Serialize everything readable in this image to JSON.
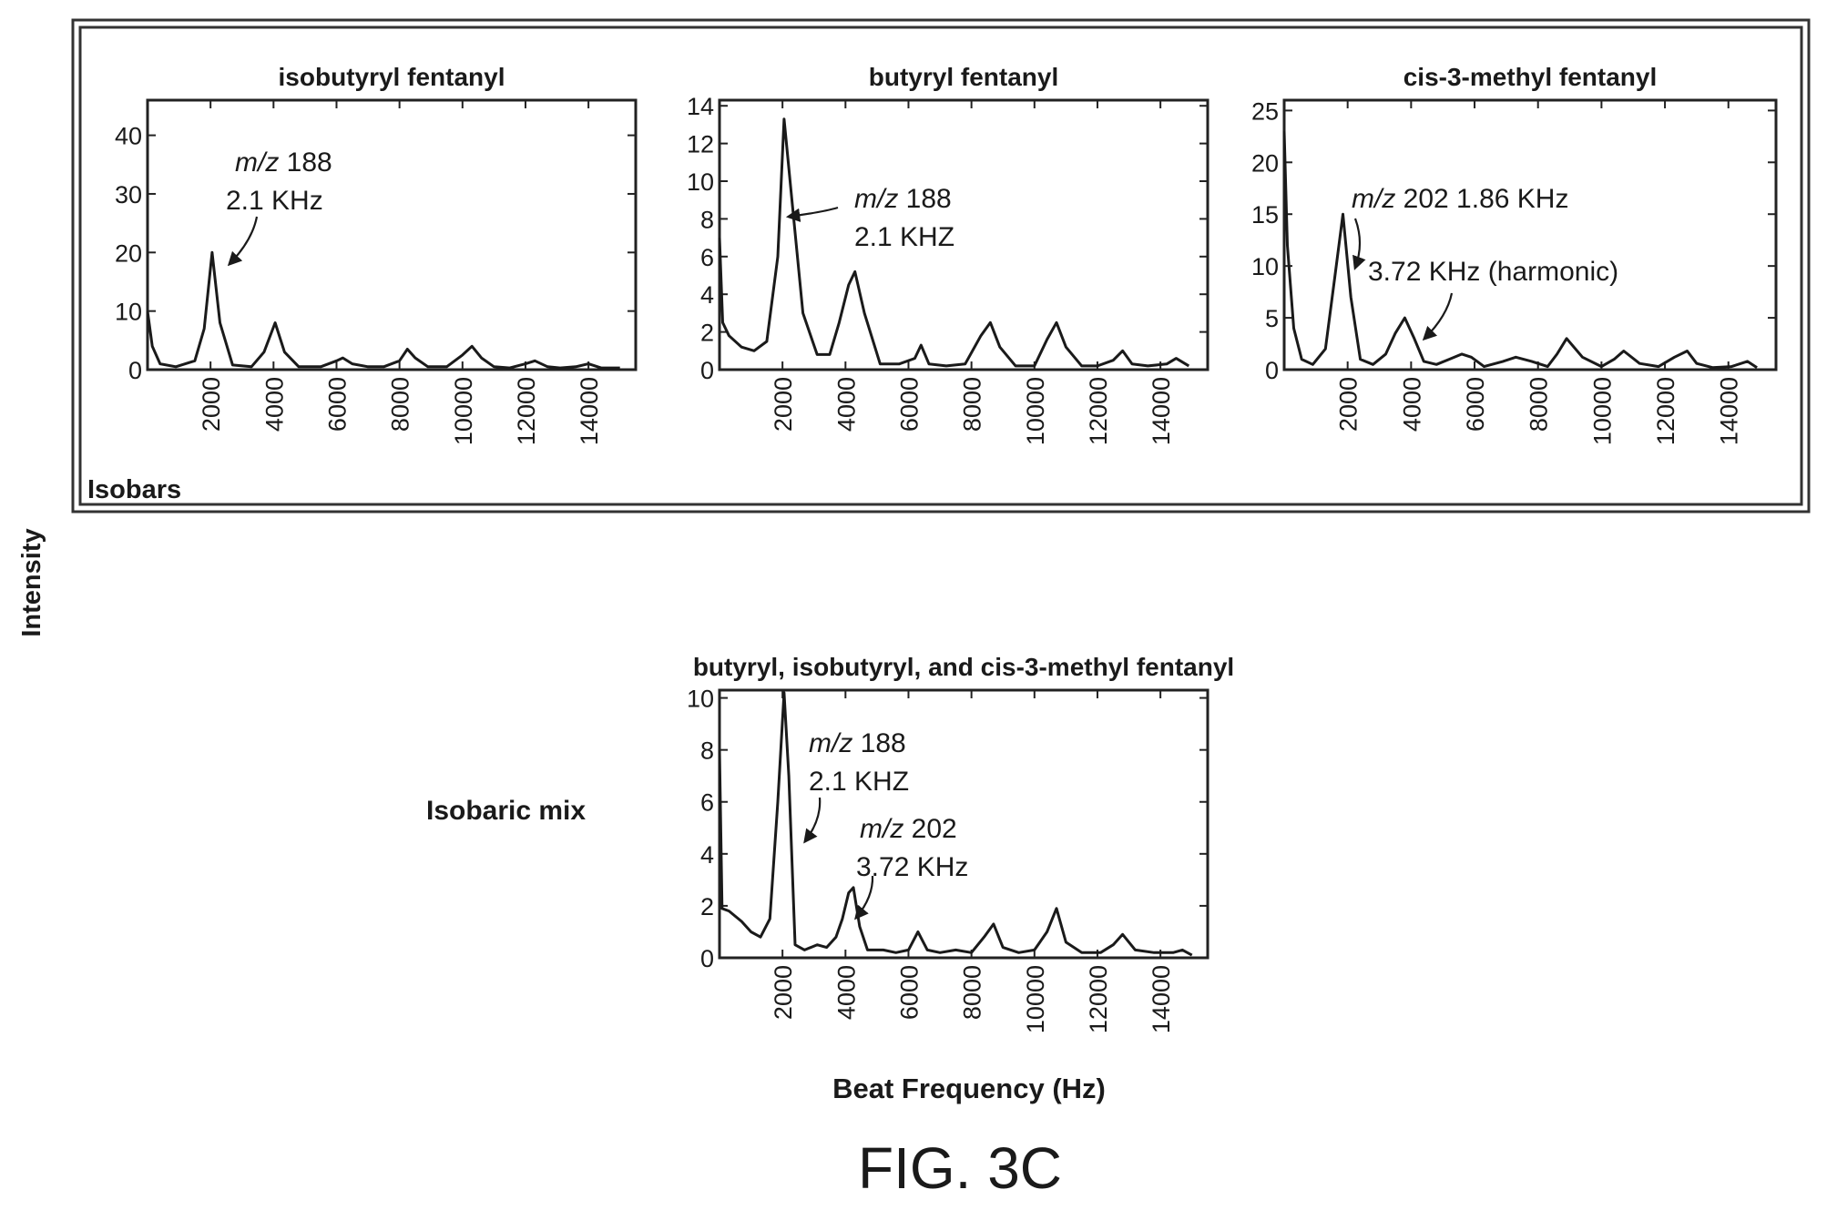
{
  "figure": {
    "y_axis_label": "Intensity",
    "x_axis_label": "Beat Frequency (Hz)",
    "caption": "FIG. 3C",
    "group_label": "Isobars",
    "mix_label": "Isobaric mix"
  },
  "chart_data": [
    {
      "type": "line",
      "title": "isobutyryl fentanyl",
      "xlabel": "",
      "ylabel": "",
      "xlim": [
        0,
        15500
      ],
      "ylim": [
        0,
        46
      ],
      "xticks": [
        2000,
        4000,
        6000,
        8000,
        10000,
        12000,
        14000
      ],
      "yticks": [
        0,
        10,
        20,
        30,
        40
      ],
      "grid": false,
      "x": [
        0,
        150,
        400,
        900,
        1500,
        1800,
        2050,
        2300,
        2700,
        3300,
        3700,
        4050,
        4350,
        4800,
        5500,
        6000,
        6200,
        6500,
        7000,
        7500,
        8000,
        8250,
        8500,
        8900,
        9500,
        10000,
        10300,
        10600,
        11000,
        11500,
        12000,
        12300,
        12700,
        13100,
        13600,
        14000,
        14400,
        15000
      ],
      "y": [
        10,
        4,
        1,
        0.5,
        1.5,
        7,
        20,
        8,
        0.8,
        0.5,
        3,
        8,
        3,
        0.5,
        0.5,
        1.5,
        2,
        1,
        0.5,
        0.5,
        1.5,
        3.5,
        2,
        0.5,
        0.5,
        2.5,
        4,
        2,
        0.5,
        0.3,
        1,
        1.5,
        0.5,
        0.3,
        0.5,
        1,
        0.3,
        0.3
      ],
      "annotations": [
        {
          "text": "m/z 188",
          "text2": "2.1 KHz",
          "x": 2050,
          "y": 20
        }
      ]
    },
    {
      "type": "line",
      "title": "butyryl fentanyl",
      "xlabel": "",
      "ylabel": "",
      "xlim": [
        0,
        15500
      ],
      "ylim": [
        0,
        14.3
      ],
      "xticks": [
        2000,
        4000,
        6000,
        8000,
        10000,
        12000,
        14000
      ],
      "yticks": [
        0,
        2,
        4,
        6,
        8,
        10,
        12,
        14
      ],
      "grid": false,
      "x": [
        0,
        100,
        300,
        700,
        1100,
        1500,
        1850,
        2050,
        2300,
        2650,
        3100,
        3500,
        3800,
        4100,
        4300,
        4600,
        5100,
        5700,
        6200,
        6400,
        6650,
        7200,
        7800,
        8300,
        8600,
        8900,
        9400,
        10000,
        10400,
        10700,
        11000,
        11500,
        12000,
        12500,
        12800,
        13100,
        13600,
        14200,
        14500,
        14900
      ],
      "y": [
        7,
        2.5,
        1.8,
        1.2,
        1.0,
        1.5,
        6,
        13.3,
        9,
        3,
        0.8,
        0.8,
        2.5,
        4.5,
        5.2,
        3,
        0.3,
        0.3,
        0.6,
        1.3,
        0.3,
        0.2,
        0.3,
        1.8,
        2.5,
        1.2,
        0.2,
        0.2,
        1.6,
        2.5,
        1.2,
        0.2,
        0.2,
        0.5,
        1.0,
        0.3,
        0.2,
        0.3,
        0.6,
        0.2
      ],
      "annotations": [
        {
          "text": "m/z 188",
          "text2": "2.1 KHZ",
          "x": 2050,
          "y": 7
        }
      ]
    },
    {
      "type": "line",
      "title": "cis-3-methyl fentanyl",
      "xlabel": "",
      "ylabel": "",
      "xlim": [
        0,
        15500
      ],
      "ylim": [
        0,
        26
      ],
      "xticks": [
        2000,
        4000,
        6000,
        8000,
        10000,
        12000,
        14000
      ],
      "yticks": [
        0,
        5,
        10,
        15,
        20,
        25
      ],
      "grid": false,
      "x": [
        0,
        100,
        300,
        550,
        900,
        1300,
        1600,
        1850,
        2100,
        2400,
        2800,
        3200,
        3500,
        3800,
        4100,
        4400,
        4800,
        5200,
        5600,
        5900,
        6300,
        6900,
        7300,
        7800,
        8300,
        8600,
        8900,
        9400,
        10000,
        10400,
        10700,
        11200,
        11800,
        12300,
        12700,
        13000,
        13500,
        14100,
        14600,
        14900
      ],
      "y": [
        23,
        12,
        4,
        1,
        0.5,
        2,
        9,
        15,
        7,
        1,
        0.5,
        1.5,
        3.5,
        5,
        3,
        0.8,
        0.5,
        1,
        1.5,
        1.2,
        0.3,
        0.8,
        1.2,
        0.8,
        0.3,
        1.5,
        3,
        1.2,
        0.3,
        1,
        1.8,
        0.6,
        0.3,
        1.2,
        1.8,
        0.6,
        0.2,
        0.3,
        0.8,
        0.2
      ],
      "annotations": [
        {
          "text": "m/z 202 1.86 KHz",
          "x": 1850,
          "y": 15
        },
        {
          "text": "3.72 KHz (harmonic)",
          "x": 3800,
          "y": 5
        }
      ]
    },
    {
      "type": "line",
      "title": "butyryl, isobutyryl, and cis-3-methyl fentanyl",
      "xlabel": "Beat Frequency (Hz)",
      "ylabel": "",
      "xlim": [
        0,
        15500
      ],
      "ylim": [
        0,
        10.3
      ],
      "xticks": [
        2000,
        4000,
        6000,
        8000,
        10000,
        12000,
        14000
      ],
      "yticks": [
        0,
        2,
        4,
        6,
        8,
        10
      ],
      "grid": false,
      "x": [
        0,
        80,
        300,
        700,
        1000,
        1300,
        1600,
        1850,
        2050,
        2200,
        2400,
        2700,
        3100,
        3400,
        3700,
        3900,
        4100,
        4250,
        4450,
        4700,
        5200,
        5600,
        6000,
        6300,
        6600,
        7000,
        7500,
        8000,
        8400,
        8700,
        9000,
        9500,
        10000,
        10400,
        10700,
        11000,
        11500,
        12100,
        12500,
        12800,
        13200,
        13800,
        14400,
        14700,
        15000
      ],
      "y": [
        8,
        1.9,
        1.8,
        1.4,
        1.0,
        0.8,
        1.5,
        6,
        10.2,
        7,
        0.5,
        0.3,
        0.5,
        0.4,
        0.8,
        1.5,
        2.5,
        2.7,
        1.2,
        0.3,
        0.3,
        0.2,
        0.3,
        1.0,
        0.3,
        0.2,
        0.3,
        0.2,
        0.8,
        1.3,
        0.4,
        0.2,
        0.3,
        1.0,
        1.9,
        0.6,
        0.2,
        0.2,
        0.5,
        0.9,
        0.3,
        0.2,
        0.2,
        0.3,
        0.1
      ],
      "annotations": [
        {
          "text": "m/z 188",
          "text2": "2.1 KHZ",
          "x": 2050,
          "y": 4.5
        },
        {
          "text": "m/z 202",
          "text2": "3.72 KHz",
          "x": 4250,
          "y": 1.5
        }
      ]
    }
  ]
}
